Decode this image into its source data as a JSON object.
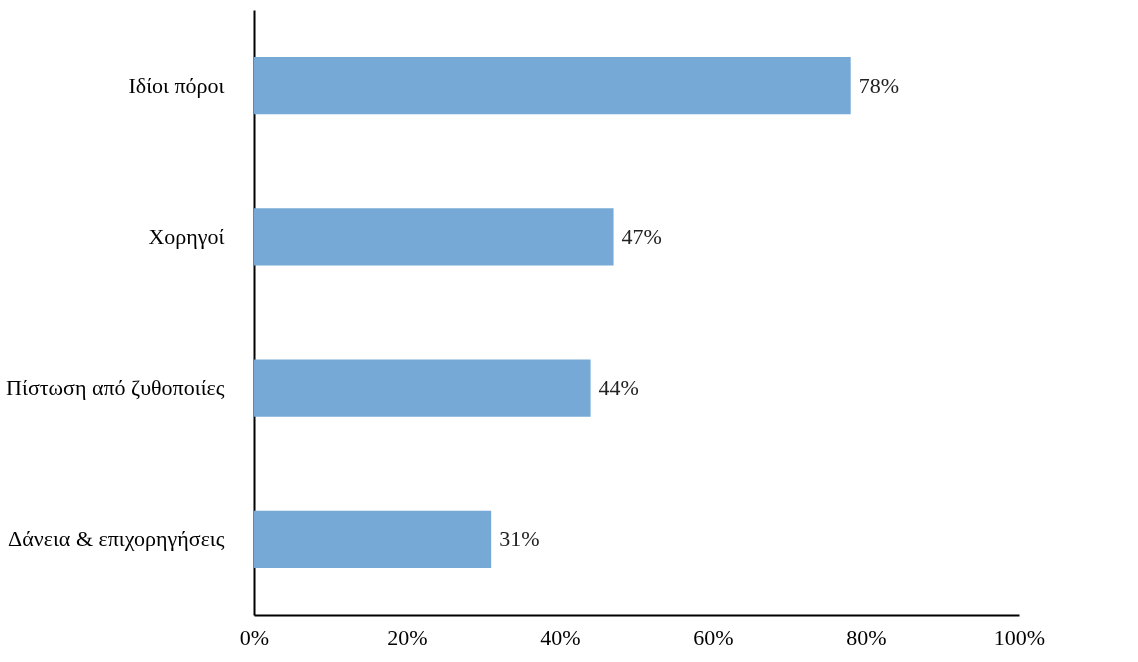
{
  "chart_data": {
    "type": "bar",
    "orientation": "horizontal",
    "categories": [
      "Ιδίοι πόροι",
      "Χορηγοί",
      "Πίστωση από ζυθοποιίες",
      "Δάνεια & επιχορηγήσεις"
    ],
    "values": [
      78,
      47,
      44,
      31
    ],
    "value_labels": [
      "78%",
      "47%",
      "44%",
      "31%"
    ],
    "color": "#76a9d6",
    "xlim": [
      0,
      100
    ],
    "xticks": [
      {
        "value": 0,
        "label": "0%"
      },
      {
        "value": 20,
        "label": "20%"
      },
      {
        "value": 40,
        "label": "40%"
      },
      {
        "value": 60,
        "label": "60%"
      },
      {
        "value": 80,
        "label": "80%"
      },
      {
        "value": 100,
        "label": "100%"
      }
    ],
    "grid": false
  }
}
